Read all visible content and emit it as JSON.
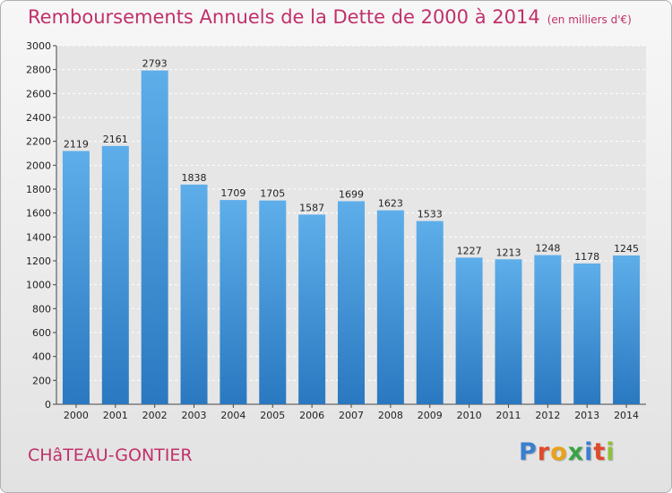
{
  "chart_data": {
    "type": "bar",
    "title": "Remboursements Annuels de la Dette de 2000 à 2014",
    "subtitle": "(en milliers d'€)",
    "categories": [
      "2000",
      "2001",
      "2002",
      "2003",
      "2004",
      "2005",
      "2006",
      "2007",
      "2008",
      "2009",
      "2010",
      "2011",
      "2012",
      "2013",
      "2014"
    ],
    "values": [
      2119,
      2161,
      2793,
      1838,
      1709,
      1705,
      1587,
      1699,
      1623,
      1533,
      1227,
      1213,
      1248,
      1178,
      1245
    ],
    "yticks": [
      0,
      200,
      400,
      600,
      800,
      1000,
      1200,
      1400,
      1600,
      1800,
      2000,
      2200,
      2400,
      2600,
      2800,
      3000
    ],
    "ylim": [
      0,
      3000
    ],
    "xlabel": "",
    "ylabel": "",
    "grid": true,
    "bar_color": "#3a8fd8"
  },
  "footer": {
    "city": "CHâTEAU-GONTIER",
    "logo_letters": [
      {
        "ch": "P",
        "color": "#3a7fd0"
      },
      {
        "ch": "r",
        "color": "#e0492b"
      },
      {
        "ch": "o",
        "color": "#e8a21a"
      },
      {
        "ch": "x",
        "color": "#3aa345"
      },
      {
        "ch": "i",
        "color": "#3a7fd0"
      },
      {
        "ch": "t",
        "color": "#e0492b"
      },
      {
        "ch": "i",
        "color": "#8fc13a"
      }
    ]
  }
}
